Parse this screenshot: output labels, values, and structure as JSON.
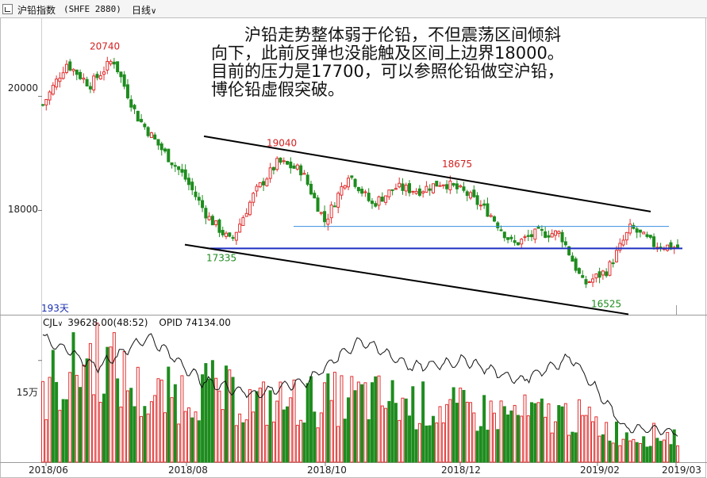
{
  "header": {
    "title": "沪铅指数",
    "code": "(SHFE 2880)",
    "period_label": "日线"
  },
  "price_panel": {
    "days_label": "193天",
    "y_ticks": [
      {
        "value": 20000,
        "label": "20000"
      },
      {
        "value": 18000,
        "label": "18000"
      }
    ]
  },
  "volume_panel": {
    "indicator_label": "CJL",
    "cjl_value": "39628.00(48:52)",
    "opid_value": "OPID 74134.00",
    "y_ticks": [
      {
        "value": 150000,
        "label": "15万"
      }
    ]
  },
  "x_ticks": [
    "2018/06",
    "2018/08",
    "2018/10",
    "2018/12",
    "2019/02",
    "2019/03"
  ],
  "annotation": {
    "lines": [
      "沪铅走势整体弱于伦铅，不但震荡区间倾斜",
      "向下，此前反弹也没能触及区间上边界18000。",
      "目前的压力是17700，可以参照伦铅做空沪铅，",
      "博伦铅虚假突破。"
    ]
  },
  "colors": {
    "up": "#e03030",
    "down": "#1e8c1e",
    "support": "#1e2fc0",
    "resistance": "#3a8fe0",
    "channel": "#000000",
    "oi_line": "#111111",
    "high_label": "#d42020",
    "low_label": "#1e8c1e"
  },
  "chart_data": [
    {
      "type": "candlestick",
      "x_range": [
        "2018/06",
        "2019/03"
      ],
      "y_range": [
        16200,
        21300
      ],
      "labeled_points": [
        {
          "x": "2018/07",
          "value": 20740,
          "label": "20740",
          "kind": "high"
        },
        {
          "x": "2018/09",
          "value": 19040,
          "label": "19040",
          "kind": "high"
        },
        {
          "x": "2018/12",
          "value": 18675,
          "label": "18675",
          "kind": "high"
        },
        {
          "x": "2018/08",
          "value": 17335,
          "label": "17335",
          "kind": "low"
        },
        {
          "x": "2019/02",
          "value": 16525,
          "label": "16525",
          "kind": "low"
        }
      ],
      "close_path": [
        [
          "2018/06",
          19850
        ],
        [
          "2018/06",
          20580
        ],
        [
          "2018/07",
          20200
        ],
        [
          "2018/07",
          20650
        ],
        [
          "2018/07",
          19650
        ],
        [
          "2018/07",
          19100
        ],
        [
          "2018/08",
          18600
        ],
        [
          "2018/08",
          17900
        ],
        [
          "2018/08",
          17450
        ],
        [
          "2018/09",
          18300
        ],
        [
          "2018/09",
          18850
        ],
        [
          "2018/09",
          18700
        ],
        [
          "2018/10",
          17800
        ],
        [
          "2018/10",
          18650
        ],
        [
          "2018/11",
          18100
        ],
        [
          "2018/11",
          18400
        ],
        [
          "2018/12",
          18350
        ],
        [
          "2018/12",
          18500
        ],
        [
          "2018/12",
          18300
        ],
        [
          "2019/01",
          17950
        ],
        [
          "2019/01",
          17400
        ],
        [
          "2019/01",
          17600
        ],
        [
          "2019/02",
          17600
        ],
        [
          "2019/02",
          16700
        ],
        [
          "2019/02",
          16950
        ],
        [
          "2019/03",
          17700
        ],
        [
          "2019/03",
          17400
        ],
        [
          "2019/03",
          17350
        ]
      ],
      "horizontal_lines": [
        {
          "name": "support",
          "value": 17335
        },
        {
          "name": "resistance",
          "value": 17720
        }
      ],
      "trendlines": [
        {
          "name": "channel-upper",
          "from": [
            "2018/08",
            19300
          ],
          "to": [
            "2019/03",
            17980
          ]
        },
        {
          "name": "channel-lower",
          "from": [
            "2018/08",
            17400
          ],
          "to": [
            "2019/02",
            16180
          ]
        }
      ]
    },
    {
      "type": "bar",
      "series": [
        {
          "name": "CJL",
          "kind": "volume"
        },
        {
          "name": "OPID",
          "kind": "line"
        }
      ],
      "y_range": [
        0,
        200000
      ],
      "last_values": {
        "CJL": 39628,
        "OPID": 74134
      },
      "volume_path": [
        [
          "2018/06",
          100000
        ],
        [
          "2018/06",
          160000
        ],
        [
          "2018/07",
          90000
        ],
        [
          "2018/07",
          110000
        ],
        [
          "2018/08",
          85000
        ],
        [
          "2018/08",
          90000
        ],
        [
          "2018/09",
          95000
        ],
        [
          "2018/10",
          85000
        ],
        [
          "2018/11",
          75000
        ],
        [
          "2018/12",
          70000
        ],
        [
          "2019/01",
          68000
        ],
        [
          "2019/02",
          40000
        ],
        [
          "2019/03",
          40000
        ]
      ],
      "oi_path": [
        [
          "2018/06",
          185000
        ],
        [
          "2018/06",
          140000
        ],
        [
          "2018/07",
          185000
        ],
        [
          "2018/07",
          120000
        ],
        [
          "2018/08",
          100000
        ],
        [
          "2018/08",
          120000
        ],
        [
          "2018/09",
          180000
        ],
        [
          "2018/10",
          140000
        ],
        [
          "2018/11",
          150000
        ],
        [
          "2018/12",
          120000
        ],
        [
          "2019/01",
          155000
        ],
        [
          "2019/02",
          50000
        ],
        [
          "2019/03",
          45000
        ]
      ]
    }
  ]
}
